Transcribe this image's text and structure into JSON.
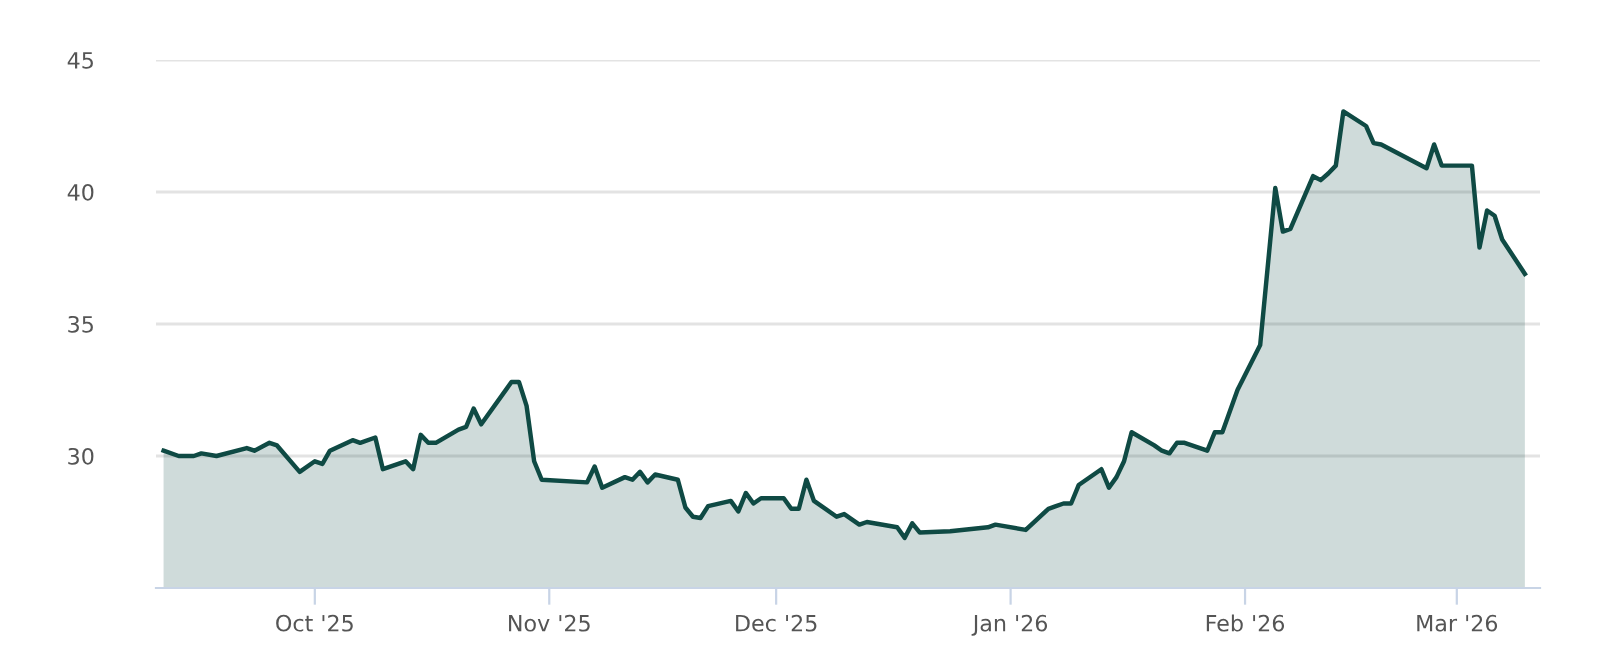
{
  "chart_data": {
    "type": "area",
    "x": [
      "2025-09-11",
      "2025-09-13",
      "2025-09-15",
      "2025-09-16",
      "2025-09-18",
      "2025-09-22",
      "2025-09-23",
      "2025-09-25",
      "2025-09-26",
      "2025-09-29",
      "2025-10-01",
      "2025-10-02",
      "2025-10-03",
      "2025-10-06",
      "2025-10-07",
      "2025-10-09",
      "2025-10-10",
      "2025-10-13",
      "2025-10-14",
      "2025-10-15",
      "2025-10-16",
      "2025-10-17",
      "2025-10-20",
      "2025-10-21",
      "2025-10-22",
      "2025-10-23",
      "2025-10-27",
      "2025-10-28",
      "2025-10-29",
      "2025-10-30",
      "2025-10-31",
      "2025-11-06",
      "2025-11-07",
      "2025-11-08",
      "2025-11-11",
      "2025-11-12",
      "2025-11-13",
      "2025-11-14",
      "2025-11-15",
      "2025-11-18",
      "2025-11-19",
      "2025-11-20",
      "2025-11-21",
      "2025-11-22",
      "2025-11-25",
      "2025-11-26",
      "2025-11-27",
      "2025-11-28",
      "2025-11-29",
      "2025-12-02",
      "2025-12-03",
      "2025-12-04",
      "2025-12-05",
      "2025-12-06",
      "2025-12-09",
      "2025-12-10",
      "2025-12-12",
      "2025-12-13",
      "2025-12-17",
      "2025-12-18",
      "2025-12-19",
      "2025-12-20",
      "2025-12-24",
      "2025-12-29",
      "2025-12-30",
      "2026-01-03",
      "2026-01-06",
      "2026-01-07",
      "2026-01-08",
      "2026-01-09",
      "2026-01-10",
      "2026-01-13",
      "2026-01-14",
      "2026-01-15",
      "2026-01-16",
      "2026-01-17",
      "2026-01-20",
      "2026-01-21",
      "2026-01-22",
      "2026-01-23",
      "2026-01-24",
      "2026-01-27",
      "2026-01-28",
      "2026-01-29",
      "2026-01-31",
      "2026-02-03",
      "2026-02-05",
      "2026-02-06",
      "2026-02-07",
      "2026-02-10",
      "2026-02-11",
      "2026-02-12",
      "2026-02-13",
      "2026-02-14",
      "2026-02-17",
      "2026-02-18",
      "2026-02-19",
      "2026-02-25",
      "2026-02-26",
      "2026-02-27",
      "2026-03-03",
      "2026-03-04",
      "2026-03-05",
      "2026-03-06",
      "2026-03-07",
      "2026-03-10"
    ],
    "series": [
      {
        "color": "#0f4a44",
        "values": [
          30.2,
          30.0,
          30.0,
          30.1,
          30.0,
          30.3,
          30.2,
          30.5,
          30.4,
          29.4,
          29.8,
          29.7,
          30.2,
          30.6,
          30.5,
          30.7,
          29.5,
          29.8,
          29.5,
          30.8,
          30.5,
          30.5,
          31.0,
          31.1,
          31.8,
          31.2,
          32.8,
          32.8,
          31.9,
          29.8,
          29.1,
          29.0,
          29.6,
          28.8,
          29.2,
          29.1,
          29.4,
          29.0,
          29.3,
          29.1,
          28.05,
          27.7,
          27.65,
          28.1,
          28.3,
          27.9,
          28.6,
          28.2,
          28.4,
          28.4,
          28.0,
          28.0,
          29.1,
          28.3,
          27.7,
          27.8,
          27.4,
          27.5,
          27.3,
          26.9,
          27.45,
          27.1,
          27.15,
          27.3,
          27.4,
          27.2,
          28.0,
          28.1,
          28.2,
          28.2,
          28.9,
          29.5,
          28.8,
          29.2,
          29.8,
          30.9,
          30.4,
          30.2,
          30.1,
          30.5,
          30.5,
          30.2,
          30.9,
          30.9,
          32.5,
          34.2,
          40.15,
          38.5,
          38.6,
          40.6,
          40.45,
          40.7,
          41.0,
          43.05,
          42.5,
          41.85,
          41.8,
          40.9,
          41.8,
          41.0,
          41.0,
          37.9,
          39.3,
          39.1,
          38.2,
          36.9
        ]
      }
    ],
    "xlim": [
      "2025-09-10",
      "2026-03-12"
    ],
    "xticks": [
      {
        "value": "2025-10-01",
        "label": "Oct '25"
      },
      {
        "value": "2025-11-01",
        "label": "Nov '25"
      },
      {
        "value": "2025-12-01",
        "label": "Dec '25"
      },
      {
        "value": "2026-01-01",
        "label": "Jan '26"
      },
      {
        "value": "2026-02-01",
        "label": "Feb '26"
      },
      {
        "value": "2026-03-01",
        "label": "Mar '26"
      }
    ],
    "ylim": [
      25,
      45
    ],
    "yticks": [
      30,
      35,
      40,
      45
    ],
    "grid": "y",
    "marker": "none",
    "line_style": "solid"
  }
}
